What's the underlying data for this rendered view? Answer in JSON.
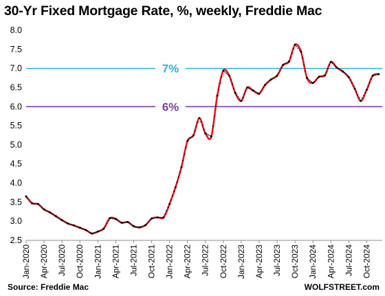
{
  "title": "30-Yr Fixed Mortgage Rate, %, weekly, Freddie Mac",
  "footer": {
    "source": "Source: Freddie Mac",
    "brand": "WOLFSTREET.com"
  },
  "chart_data": {
    "type": "line",
    "title": "30-Yr Fixed Mortgage Rate, %, weekly, Freddie Mac",
    "xlabel": "",
    "ylabel": "",
    "ylim": [
      2.5,
      8.0
    ],
    "xlim": [
      "2020-01",
      "2024-12"
    ],
    "grid": false,
    "y_ticks": [
      "8.0",
      "7.5",
      "7.0",
      "6.5",
      "6.0",
      "5.5",
      "5.0",
      "4.5",
      "4.0",
      "3.5",
      "3.0",
      "2.5"
    ],
    "x_ticks": [
      "Jan-2020",
      "Apr-2020",
      "Jul-2020",
      "Oct-2020",
      "Jan-2021",
      "Apr-2021",
      "Jul-2021",
      "Oct-2021",
      "Jan-2022",
      "Apr-2022",
      "Jul-2022",
      "Oct-2022",
      "Jan-2023",
      "Apr-2023",
      "Jul-2023",
      "Oct-2023",
      "Jan-2024",
      "Apr-2024",
      "Jul-2024",
      "Oct-2024"
    ],
    "reference_lines": [
      {
        "value": 7.0,
        "label": "7%",
        "color": "#27b4d6"
      },
      {
        "value": 6.0,
        "label": "6%",
        "color": "#7a3ea8"
      }
    ],
    "series": [
      {
        "line_color": "#e8141c",
        "marker_color": "#000000",
        "x": [
          "2020-01",
          "2020-02",
          "2020-03",
          "2020-04",
          "2020-05",
          "2020-06",
          "2020-07",
          "2020-08",
          "2020-09",
          "2020-10",
          "2020-11",
          "2020-12",
          "2021-01",
          "2021-02",
          "2021-03",
          "2021-04",
          "2021-05",
          "2021-06",
          "2021-07",
          "2021-08",
          "2021-09",
          "2021-10",
          "2021-11",
          "2021-12",
          "2022-01",
          "2022-02",
          "2022-03",
          "2022-04",
          "2022-05",
          "2022-06",
          "2022-07",
          "2022-08",
          "2022-09",
          "2022-10",
          "2022-11",
          "2022-12",
          "2023-01",
          "2023-02",
          "2023-03",
          "2023-04",
          "2023-05",
          "2023-06",
          "2023-07",
          "2023-08",
          "2023-09",
          "2023-10",
          "2023-11",
          "2023-12",
          "2024-01",
          "2024-02",
          "2024-03",
          "2024-04",
          "2024-05",
          "2024-06",
          "2024-07",
          "2024-08",
          "2024-09",
          "2024-10",
          "2024-11",
          "2024-12"
        ],
        "values": [
          3.65,
          3.47,
          3.45,
          3.31,
          3.23,
          3.13,
          3.03,
          2.94,
          2.89,
          2.83,
          2.77,
          2.68,
          2.73,
          2.81,
          3.08,
          3.06,
          2.96,
          2.98,
          2.87,
          2.84,
          2.9,
          3.07,
          3.1,
          3.1,
          3.45,
          3.89,
          4.42,
          5.1,
          5.25,
          5.7,
          5.3,
          5.22,
          6.29,
          6.94,
          6.81,
          6.36,
          6.15,
          6.5,
          6.42,
          6.34,
          6.57,
          6.71,
          6.81,
          7.09,
          7.18,
          7.62,
          7.44,
          6.75,
          6.62,
          6.78,
          6.82,
          7.17,
          7.02,
          6.92,
          6.77,
          6.47,
          6.15,
          6.44,
          6.81,
          6.85
        ]
      }
    ]
  }
}
